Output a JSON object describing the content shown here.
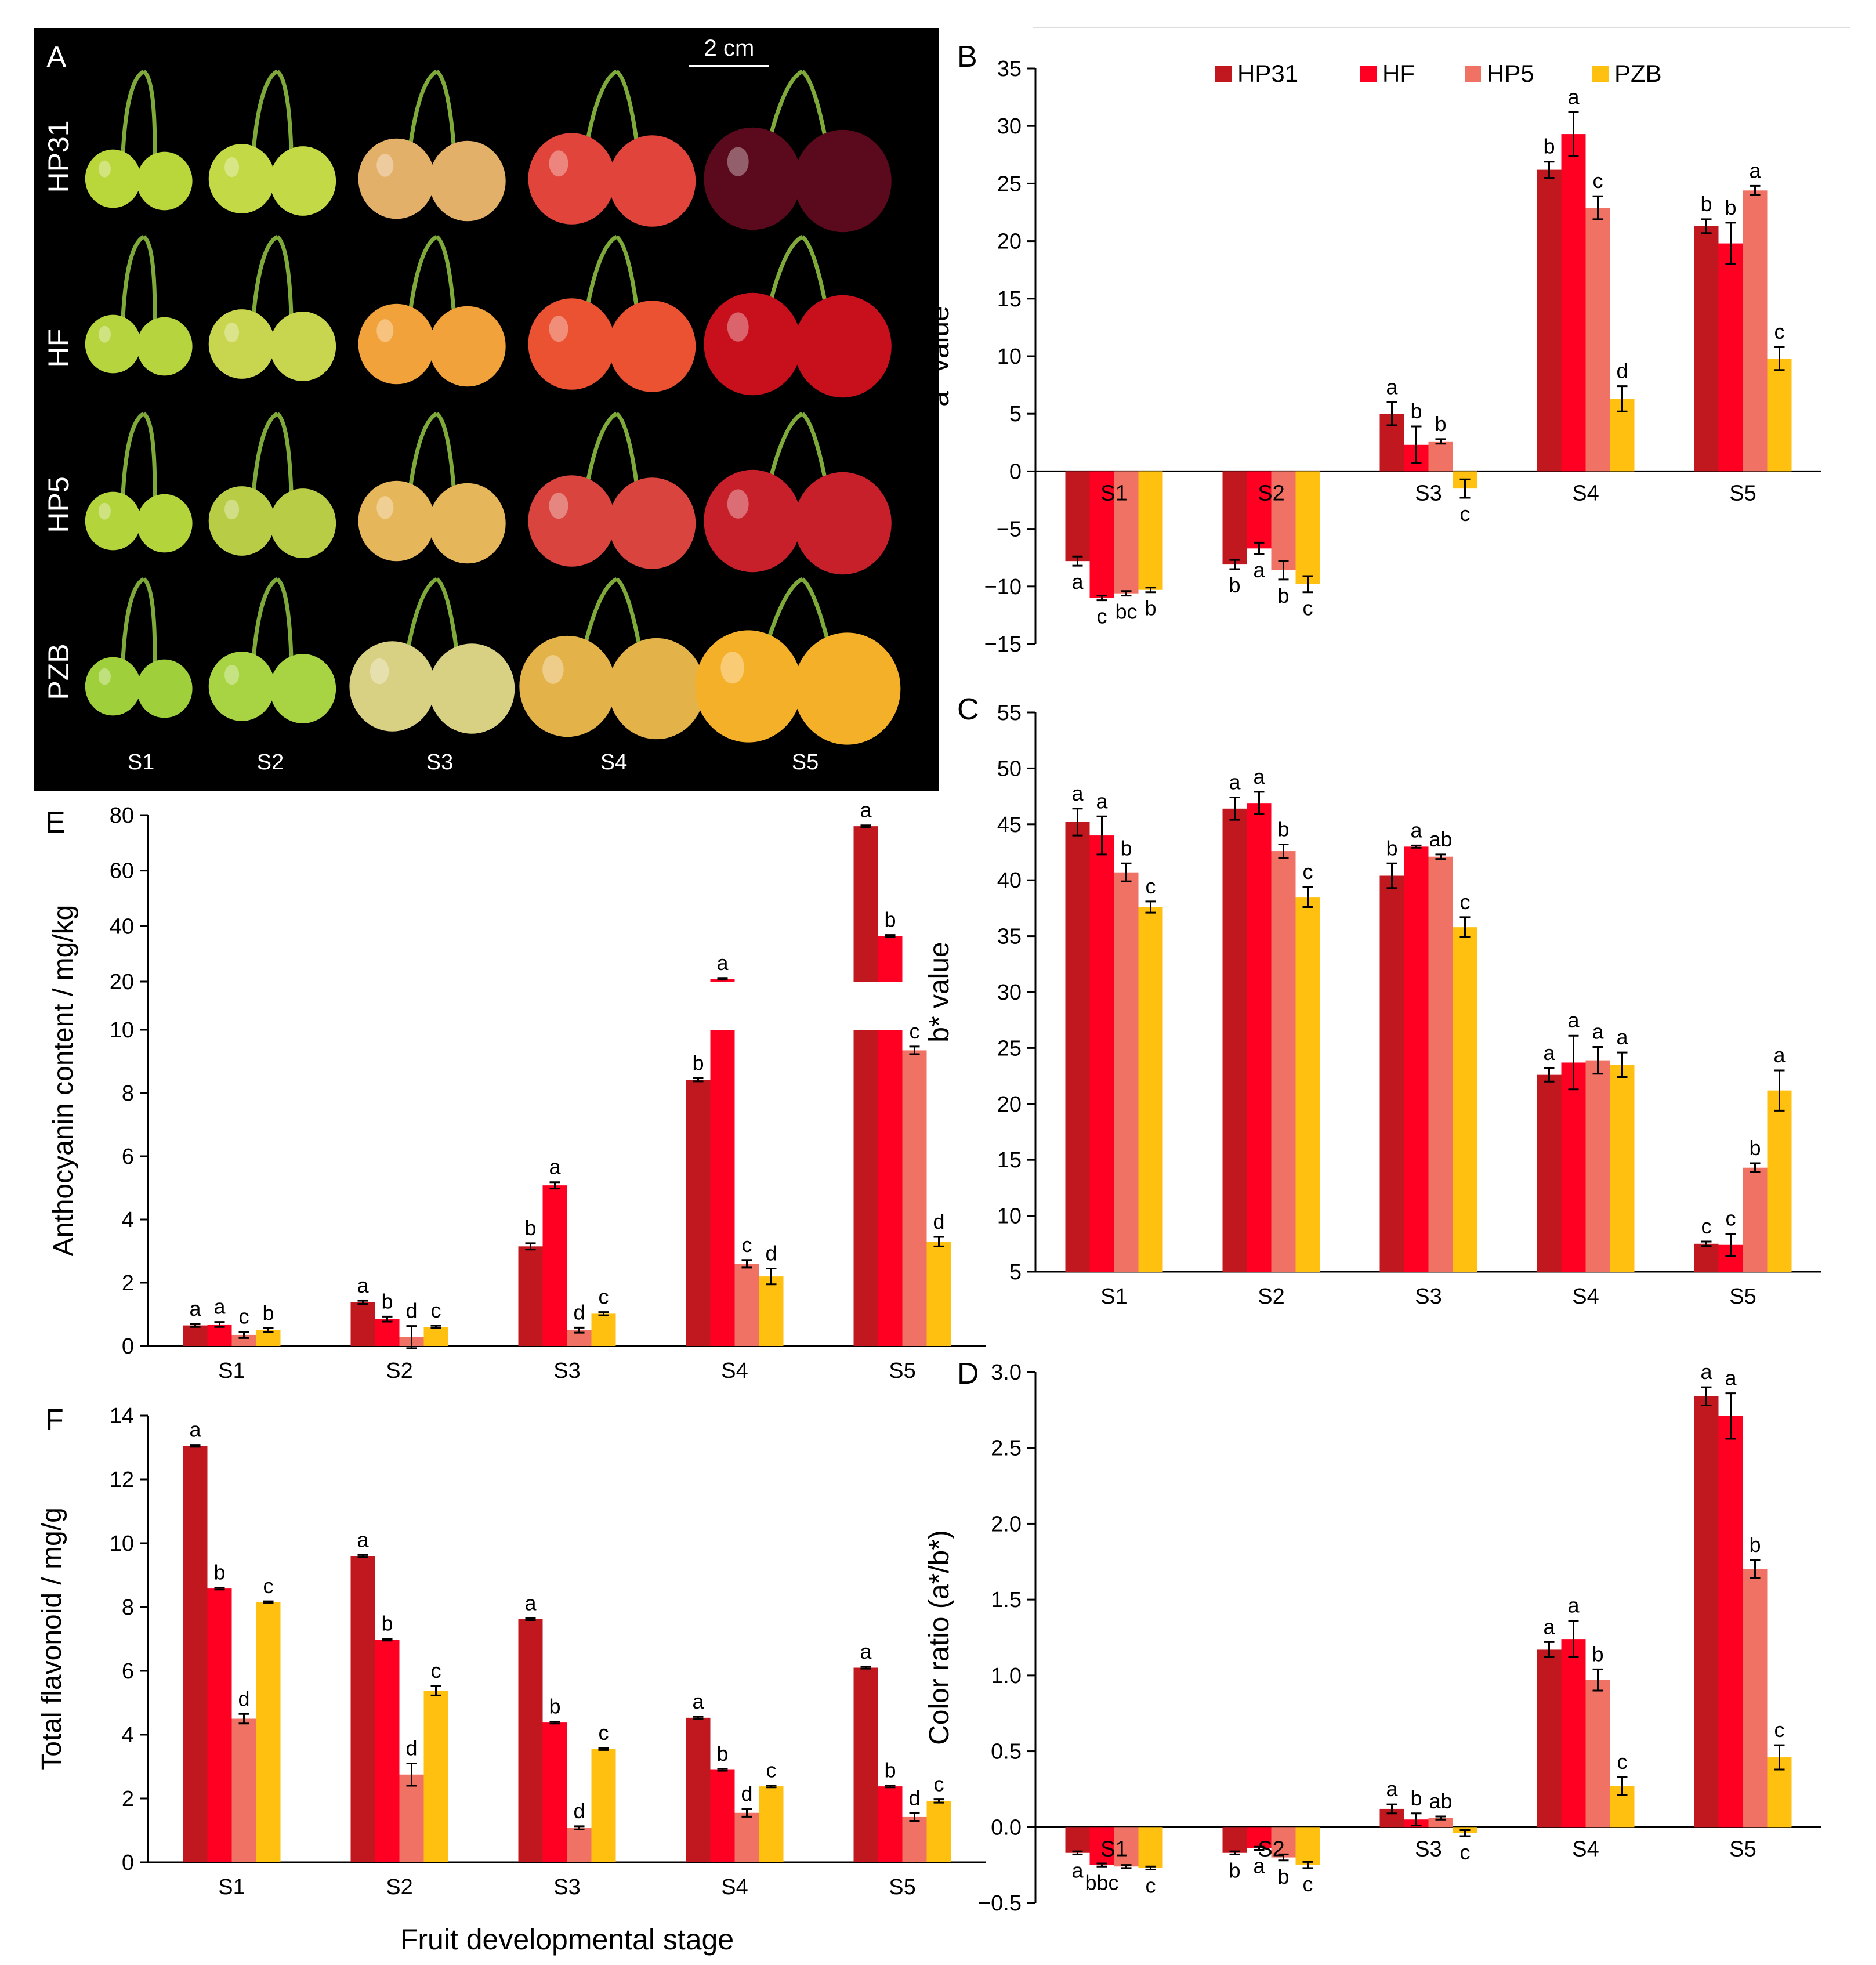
{
  "colors": {
    "HP31": "#C0181E",
    "HF": "#FF0022",
    "HP5": "#F07265",
    "PZB": "#FFC010"
  },
  "photo": {
    "label": "A",
    "scale": "2 cm",
    "rows": [
      "HP31",
      "HF",
      "HP5",
      "PZB"
    ],
    "stages": [
      "S1",
      "S2",
      "S3",
      "S4",
      "S5"
    ],
    "fruit_colors": [
      [
        "#b9d63a",
        "#c3d946",
        "#e3b06a",
        "#e1443a",
        "#5a0a1c"
      ],
      [
        "#b5d43d",
        "#c8d54e",
        "#f2a23a",
        "#ea5232",
        "#c8101d"
      ],
      [
        "#b4d43c",
        "#b9cc45",
        "#e6b65a",
        "#d9453e",
        "#c8202a"
      ],
      [
        "#9fcf3a",
        "#a8d443",
        "#d8d082",
        "#e3b34a",
        "#f5b02a"
      ]
    ]
  },
  "xlabel": "Fruit developmental stage",
  "chart_data": [
    {
      "id": "B",
      "type": "bar",
      "ylabel": "a* value",
      "ylim": [
        -15,
        35
      ],
      "yticks": [
        -15,
        -10,
        -5,
        0,
        5,
        10,
        15,
        20,
        25,
        30,
        35
      ],
      "categories": [
        "S1",
        "S2",
        "S3",
        "S4",
        "S5"
      ],
      "legend": "top",
      "legend_labels": [
        "HP31",
        "HF",
        "HP5",
        "PZB"
      ],
      "series": [
        {
          "name": "HP31",
          "values": [
            -7.8,
            -8.1,
            5.0,
            26.2,
            21.3
          ],
          "err": [
            0.4,
            0.4,
            1.0,
            0.7,
            0.6
          ],
          "letters": [
            "a",
            "b",
            "a",
            "b",
            "b"
          ]
        },
        {
          "name": "HF",
          "values": [
            -11.0,
            -6.7,
            2.3,
            29.3,
            19.8
          ],
          "err": [
            0.2,
            0.5,
            1.6,
            1.9,
            1.8
          ],
          "letters": [
            "c",
            "a",
            "b",
            "a",
            "b"
          ]
        },
        {
          "name": "HP5",
          "values": [
            -10.6,
            -8.6,
            2.6,
            22.9,
            24.4
          ],
          "err": [
            0.2,
            0.8,
            0.2,
            1.0,
            0.4
          ],
          "letters": [
            "bc",
            "b",
            "b",
            "c",
            "a"
          ]
        },
        {
          "name": "PZB",
          "values": [
            -10.3,
            -9.8,
            -1.5,
            6.3,
            9.8
          ],
          "err": [
            0.2,
            0.7,
            0.8,
            1.1,
            1.0
          ],
          "letters": [
            "b",
            "c",
            "c",
            "d",
            "c"
          ]
        }
      ]
    },
    {
      "id": "C",
      "type": "bar",
      "ylabel": "b* value",
      "ylim": [
        5,
        55
      ],
      "yticks": [
        5,
        10,
        15,
        20,
        25,
        30,
        35,
        40,
        45,
        50,
        55
      ],
      "categories": [
        "S1",
        "S2",
        "S3",
        "S4",
        "S5"
      ],
      "series": [
        {
          "name": "HP31",
          "values": [
            45.2,
            46.4,
            40.4,
            22.6,
            7.5
          ],
          "err": [
            1.2,
            1.0,
            1.1,
            0.6,
            0.2
          ],
          "letters": [
            "a",
            "a",
            "b",
            "a",
            "c"
          ]
        },
        {
          "name": "HF",
          "values": [
            44.0,
            46.9,
            43.0,
            23.7,
            7.4
          ],
          "err": [
            1.7,
            1.0,
            0.1,
            2.4,
            1.0
          ],
          "letters": [
            "a",
            "a",
            "a",
            "a",
            "c"
          ]
        },
        {
          "name": "HP5",
          "values": [
            40.7,
            42.6,
            42.1,
            23.9,
            14.3
          ],
          "err": [
            0.8,
            0.6,
            0.2,
            1.2,
            0.4
          ],
          "letters": [
            "b",
            "b",
            "ab",
            "a",
            "b"
          ]
        },
        {
          "name": "PZB",
          "values": [
            37.6,
            38.5,
            35.8,
            23.5,
            21.2
          ],
          "err": [
            0.5,
            0.9,
            0.9,
            1.1,
            1.8
          ],
          "letters": [
            "c",
            "c",
            "c",
            "a",
            "a"
          ]
        }
      ]
    },
    {
      "id": "D",
      "type": "bar",
      "ylabel": "Color ratio (a*/b*)",
      "xlabel": "Fruit developmental stage",
      "ylim": [
        -0.5,
        3.0
      ],
      "yticks": [
        -0.5,
        0.0,
        0.5,
        1.0,
        1.5,
        2.0,
        2.5,
        3.0
      ],
      "ytick_labels": [
        "−0.5",
        "0.0",
        "0.5",
        "1.0",
        "1.5",
        "2.0",
        "2.5",
        "3.0"
      ],
      "categories": [
        "S1",
        "S2",
        "S3",
        "S4",
        "S5"
      ],
      "series": [
        {
          "name": "HP31",
          "values": [
            -0.17,
            -0.17,
            0.12,
            1.17,
            2.84
          ],
          "err": [
            0.01,
            0.01,
            0.03,
            0.05,
            0.06
          ],
          "letters": [
            "a",
            "b",
            "a",
            "a",
            "a"
          ]
        },
        {
          "name": "HF",
          "values": [
            -0.25,
            -0.14,
            0.05,
            1.24,
            2.71
          ],
          "err": [
            0.01,
            0.01,
            0.04,
            0.12,
            0.15
          ],
          "letters": [
            "bbc",
            "a",
            "b",
            "a",
            "a"
          ]
        },
        {
          "name": "HP5",
          "values": [
            -0.26,
            -0.2,
            0.06,
            0.97,
            1.7
          ],
          "err": [
            0.01,
            0.02,
            0.01,
            0.07,
            0.06
          ],
          "letters": [
            "",
            "b",
            "ab",
            "b",
            "b"
          ]
        },
        {
          "name": "PZB",
          "values": [
            -0.27,
            -0.25,
            -0.04,
            0.27,
            0.46
          ],
          "err": [
            0.01,
            0.02,
            0.02,
            0.06,
            0.08
          ],
          "letters": [
            "c",
            "c",
            "c",
            "c",
            "c"
          ]
        }
      ]
    },
    {
      "id": "E",
      "type": "bar",
      "ylabel": "Anthocyanin content  / mg/kg",
      "broken_axis": true,
      "lower_ylim": [
        0,
        10
      ],
      "lower_yticks": [
        0,
        2,
        4,
        6,
        8,
        10
      ],
      "upper_ylim": [
        20,
        80
      ],
      "upper_yticks": [
        20,
        40,
        60,
        80
      ],
      "categories": [
        "S1",
        "S2",
        "S3",
        "S4",
        "S5"
      ],
      "series": [
        {
          "name": "HP31",
          "values": [
            0.65,
            1.38,
            3.15,
            8.42,
            76.0
          ],
          "err": [
            0.05,
            0.05,
            0.1,
            0.05,
            0.3
          ],
          "letters": [
            "a",
            "a",
            "b",
            "b",
            "a"
          ]
        },
        {
          "name": "HF",
          "values": [
            0.68,
            0.85,
            5.08,
            21.0,
            36.5
          ],
          "err": [
            0.08,
            0.08,
            0.1,
            0.3,
            0.3
          ],
          "letters": [
            "a",
            "b",
            "a",
            "a",
            "b"
          ]
        },
        {
          "name": "HP5",
          "values": [
            0.35,
            0.28,
            0.5,
            2.6,
            9.35
          ],
          "err": [
            0.1,
            0.35,
            0.08,
            0.12,
            0.12
          ],
          "letters": [
            "c",
            "d",
            "d",
            "c",
            "c"
          ]
        },
        {
          "name": "PZB",
          "values": [
            0.5,
            0.6,
            1.02,
            2.2,
            3.3
          ],
          "err": [
            0.06,
            0.04,
            0.05,
            0.25,
            0.15
          ],
          "letters": [
            "b",
            "c",
            "c",
            "d",
            "d"
          ]
        }
      ]
    },
    {
      "id": "F",
      "type": "bar",
      "ylabel": "Total flavonoid / mg/g",
      "xlabel": "Fruit developmental stage",
      "ylim": [
        0,
        14
      ],
      "yticks": [
        0,
        2,
        4,
        6,
        8,
        10,
        12,
        14
      ],
      "categories": [
        "S1",
        "S2",
        "S3",
        "S4",
        "S5"
      ],
      "series": [
        {
          "name": "HP31",
          "values": [
            13.05,
            9.6,
            7.62,
            4.53,
            6.1
          ],
          "err": [
            0.03,
            0.03,
            0.03,
            0.03,
            0.03
          ],
          "letters": [
            "a",
            "a",
            "a",
            "a",
            "a"
          ]
        },
        {
          "name": "HF",
          "values": [
            8.58,
            6.98,
            4.38,
            2.9,
            2.38
          ],
          "err": [
            0.03,
            0.03,
            0.03,
            0.03,
            0.03
          ],
          "letters": [
            "b",
            "b",
            "b",
            "b",
            "b"
          ]
        },
        {
          "name": "HP5",
          "values": [
            4.5,
            2.75,
            1.08,
            1.55,
            1.42
          ],
          "err": [
            0.15,
            0.35,
            0.05,
            0.12,
            0.12
          ],
          "letters": [
            "d",
            "d",
            "d",
            "d",
            "d"
          ]
        },
        {
          "name": "PZB",
          "values": [
            8.15,
            5.38,
            3.55,
            2.38,
            1.92
          ],
          "err": [
            0.03,
            0.15,
            0.03,
            0.03,
            0.05
          ],
          "letters": [
            "c",
            "c",
            "c",
            "c",
            "c"
          ]
        }
      ]
    }
  ]
}
